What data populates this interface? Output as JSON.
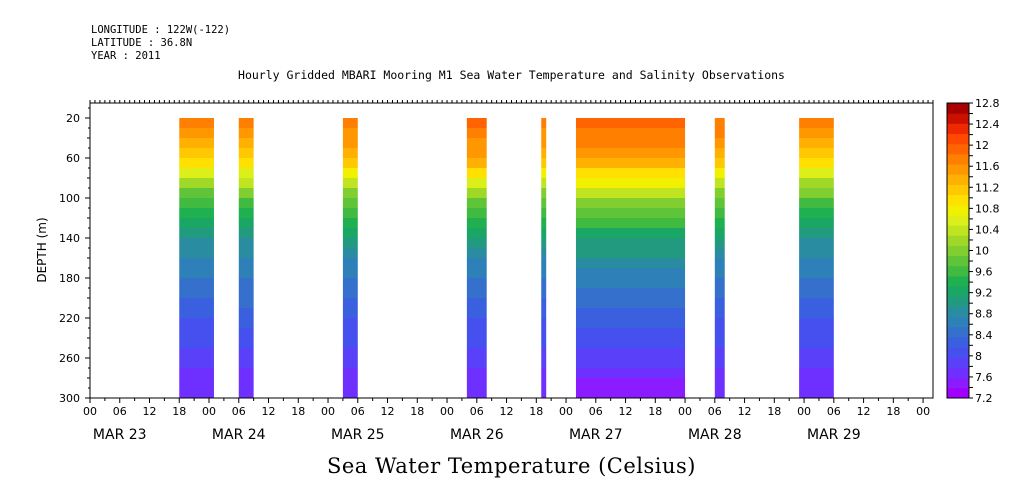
{
  "header": {
    "longitude": "LONGITUDE : 122W(-122)",
    "latitude": "LATITUDE : 36.8N",
    "year": "YEAR : 2011"
  },
  "chart_data": {
    "type": "heatmap",
    "title": "Hourly Gridded MBARI Mooring M1 Sea Water Temperature and Salinity Observations",
    "xlabel": "",
    "ylabel": "DEPTH (m)",
    "colorbar_label": "Sea Water Temperature (Celsius)",
    "x_start": "MAR 23 2011 00:00",
    "xlim_hours": [
      0,
      170
    ],
    "ylim": [
      300,
      5
    ],
    "y_reversed": true,
    "y_ticks": [
      20,
      60,
      100,
      140,
      180,
      220,
      260,
      300
    ],
    "x_hour_ticks": [
      "00",
      "06",
      "12",
      "18"
    ],
    "day_labels": [
      "MAR 23",
      "MAR 24",
      "MAR 25",
      "MAR 26",
      "MAR 27",
      "MAR 28",
      "MAR 29"
    ],
    "data_depth_range": [
      20,
      300
    ],
    "colorbar": {
      "levels": [
        7.2,
        7.4,
        7.6,
        7.8,
        8.0,
        8.2,
        8.4,
        8.6,
        8.8,
        9.0,
        9.2,
        9.4,
        9.6,
        9.8,
        10.0,
        10.2,
        10.4,
        10.6,
        10.8,
        11.0,
        11.2,
        11.4,
        11.6,
        11.8,
        12.0,
        12.2,
        12.4,
        12.6,
        12.8
      ],
      "labels": [
        "7.2",
        "7.6",
        "8",
        "8.4",
        "8.8",
        "9.2",
        "9.6",
        "10",
        "10.4",
        "10.8",
        "11.2",
        "11.6",
        "12",
        "12.4",
        "12.8"
      ],
      "colors": [
        "#a000ff",
        "#8a1cff",
        "#6e30ff",
        "#5a40f8",
        "#4650ee",
        "#3a60e0",
        "#3470cc",
        "#2e80b8",
        "#2a8ca0",
        "#229a80",
        "#1aa664",
        "#20b050",
        "#40ba40",
        "#60c438",
        "#80ce30",
        "#a0d828",
        "#c0e420",
        "#dcef18",
        "#f0f000",
        "#ffe000",
        "#ffc800",
        "#ffb000",
        "#ff9800",
        "#ff8000",
        "#ff6400",
        "#ff4800",
        "#ee2800",
        "#cc1000",
        "#a80000"
      ]
    },
    "segments": [
      {
        "start": "MAR 23 18:00",
        "end": "MAR 24 01:00",
        "profile": [
          {
            "depth": 20,
            "temp": 11.9
          },
          {
            "depth": 60,
            "temp": 11.2
          },
          {
            "depth": 100,
            "temp": 9.8
          },
          {
            "depth": 140,
            "temp": 9.0
          },
          {
            "depth": 180,
            "temp": 8.6
          },
          {
            "depth": 220,
            "temp": 8.2
          },
          {
            "depth": 260,
            "temp": 7.9
          },
          {
            "depth": 300,
            "temp": 7.6
          }
        ]
      },
      {
        "start": "MAR 24 06:00",
        "end": "MAR 24 09:00",
        "profile": [
          {
            "depth": 20,
            "temp": 11.9
          },
          {
            "depth": 60,
            "temp": 11.3
          },
          {
            "depth": 100,
            "temp": 9.9
          },
          {
            "depth": 140,
            "temp": 9.0
          },
          {
            "depth": 180,
            "temp": 8.6
          },
          {
            "depth": 220,
            "temp": 8.3
          },
          {
            "depth": 260,
            "temp": 7.9
          },
          {
            "depth": 300,
            "temp": 7.6
          }
        ]
      },
      {
        "start": "MAR 25 03:00",
        "end": "MAR 25 06:00",
        "profile": [
          {
            "depth": 20,
            "temp": 12.0
          },
          {
            "depth": 60,
            "temp": 11.4
          },
          {
            "depth": 100,
            "temp": 10.0
          },
          {
            "depth": 140,
            "temp": 9.1
          },
          {
            "depth": 180,
            "temp": 8.6
          },
          {
            "depth": 220,
            "temp": 8.2
          },
          {
            "depth": 260,
            "temp": 7.9
          },
          {
            "depth": 300,
            "temp": 7.6
          }
        ]
      },
      {
        "start": "MAR 26 04:00",
        "end": "MAR 26 08:00",
        "profile": [
          {
            "depth": 20,
            "temp": 12.1
          },
          {
            "depth": 60,
            "temp": 11.6
          },
          {
            "depth": 100,
            "temp": 10.1
          },
          {
            "depth": 140,
            "temp": 9.1
          },
          {
            "depth": 180,
            "temp": 8.6
          },
          {
            "depth": 220,
            "temp": 8.2
          },
          {
            "depth": 260,
            "temp": 7.9
          },
          {
            "depth": 300,
            "temp": 7.6
          }
        ]
      },
      {
        "start": "MAR 26 19:00",
        "end": "MAR 26 20:00",
        "profile": [
          {
            "depth": 20,
            "temp": 12.0
          },
          {
            "depth": 60,
            "temp": 11.4
          },
          {
            "depth": 100,
            "temp": 10.0
          },
          {
            "depth": 140,
            "temp": 9.1
          },
          {
            "depth": 180,
            "temp": 8.6
          },
          {
            "depth": 220,
            "temp": 8.2
          },
          {
            "depth": 260,
            "temp": 7.9
          },
          {
            "depth": 300,
            "temp": 7.6
          }
        ]
      },
      {
        "start": "MAR 27 02:00",
        "end": "MAR 28 00:00",
        "profile": [
          {
            "depth": 20,
            "temp": 12.1
          },
          {
            "depth": 60,
            "temp": 11.7
          },
          {
            "depth": 100,
            "temp": 10.3
          },
          {
            "depth": 140,
            "temp": 9.2
          },
          {
            "depth": 180,
            "temp": 8.7
          },
          {
            "depth": 220,
            "temp": 8.3
          },
          {
            "depth": 260,
            "temp": 7.9
          },
          {
            "depth": 300,
            "temp": 7.4
          }
        ]
      },
      {
        "start": "MAR 28 06:00",
        "end": "MAR 28 08:00",
        "profile": [
          {
            "depth": 20,
            "temp": 12.0
          },
          {
            "depth": 60,
            "temp": 11.5
          },
          {
            "depth": 100,
            "temp": 10.0
          },
          {
            "depth": 140,
            "temp": 9.1
          },
          {
            "depth": 180,
            "temp": 8.6
          },
          {
            "depth": 220,
            "temp": 8.2
          },
          {
            "depth": 260,
            "temp": 7.9
          },
          {
            "depth": 300,
            "temp": 7.6
          }
        ]
      },
      {
        "start": "MAR 28 23:00",
        "end": "MAR 29 06:00",
        "profile": [
          {
            "depth": 20,
            "temp": 11.9
          },
          {
            "depth": 60,
            "temp": 11.2
          },
          {
            "depth": 100,
            "temp": 9.9
          },
          {
            "depth": 140,
            "temp": 9.0
          },
          {
            "depth": 180,
            "temp": 8.6
          },
          {
            "depth": 220,
            "temp": 8.2
          },
          {
            "depth": 260,
            "temp": 7.9
          },
          {
            "depth": 300,
            "temp": 7.6
          }
        ]
      }
    ]
  }
}
